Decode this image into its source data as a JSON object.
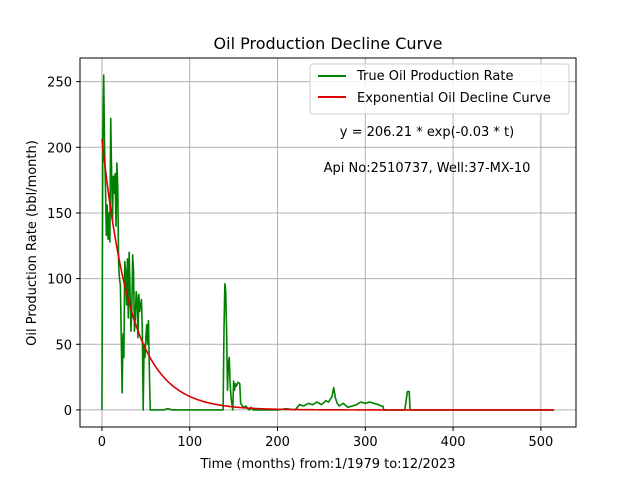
{
  "chart_data": {
    "type": "line",
    "title": "Oil Production Decline Curve",
    "xlabel": "Time (months) from:1/1979 to:12/2023",
    "ylabel": "Oil Production Rate (bbl/month)",
    "xlim": [
      -25,
      540
    ],
    "ylim": [
      -13,
      268
    ],
    "xticks": [
      0,
      100,
      200,
      300,
      400,
      500
    ],
    "yticks": [
      0,
      50,
      100,
      150,
      200,
      250
    ],
    "grid": true,
    "legend_position": "top-right",
    "annotations": [
      "y = 206.21 * exp(-0.03 * t)",
      "Api No:2510737, Well:37-MX-10"
    ],
    "series": [
      {
        "name": "True Oil Production Rate",
        "color": "#008000",
        "kind": "data",
        "points": [
          [
            0,
            0
          ],
          [
            1,
            210
          ],
          [
            2,
            255
          ],
          [
            3,
            200
          ],
          [
            4,
            170
          ],
          [
            5,
            133
          ],
          [
            6,
            156
          ],
          [
            7,
            130
          ],
          [
            8,
            150
          ],
          [
            9,
            128
          ],
          [
            10,
            222
          ],
          [
            11,
            180
          ],
          [
            12,
            145
          ],
          [
            13,
            178
          ],
          [
            14,
            165
          ],
          [
            15,
            180
          ],
          [
            16,
            140
          ],
          [
            17,
            188
          ],
          [
            18,
            170
          ],
          [
            19,
            110
          ],
          [
            20,
            100
          ],
          [
            21,
            95
          ],
          [
            22,
            55
          ],
          [
            23,
            13
          ],
          [
            24,
            58
          ],
          [
            25,
            40
          ],
          [
            26,
            113
          ],
          [
            27,
            105
          ],
          [
            28,
            80
          ],
          [
            29,
            115
          ],
          [
            30,
            70
          ],
          [
            31,
            120
          ],
          [
            32,
            90
          ],
          [
            33,
            60
          ],
          [
            34,
            75
          ],
          [
            35,
            118
          ],
          [
            36,
            105
          ],
          [
            37,
            60
          ],
          [
            38,
            70
          ],
          [
            39,
            90
          ],
          [
            40,
            85
          ],
          [
            41,
            55
          ],
          [
            42,
            88
          ],
          [
            43,
            75
          ],
          [
            44,
            80
          ],
          [
            45,
            84
          ],
          [
            46,
            60
          ],
          [
            47,
            0
          ],
          [
            48,
            50
          ],
          [
            49,
            40
          ],
          [
            50,
            55
          ],
          [
            51,
            65
          ],
          [
            52,
            50
          ],
          [
            53,
            68
          ],
          [
            54,
            30
          ],
          [
            55,
            0
          ],
          [
            60,
            0
          ],
          [
            70,
            0
          ],
          [
            75,
            1
          ],
          [
            80,
            0
          ],
          [
            100,
            0
          ],
          [
            120,
            0
          ],
          [
            138,
            0
          ],
          [
            139,
            60
          ],
          [
            140,
            96
          ],
          [
            141,
            90
          ],
          [
            142,
            60
          ],
          [
            143,
            15
          ],
          [
            144,
            35
          ],
          [
            145,
            40
          ],
          [
            146,
            20
          ],
          [
            147,
            10
          ],
          [
            148,
            5
          ],
          [
            149,
            0
          ],
          [
            150,
            22
          ],
          [
            151,
            15
          ],
          [
            152,
            20
          ],
          [
            153,
            18
          ],
          [
            155,
            21
          ],
          [
            157,
            20
          ],
          [
            158,
            5
          ],
          [
            160,
            3
          ],
          [
            162,
            2
          ],
          [
            164,
            3
          ],
          [
            166,
            1
          ],
          [
            168,
            0
          ],
          [
            170,
            2
          ],
          [
            172,
            0
          ],
          [
            176,
            0
          ],
          [
            180,
            0
          ],
          [
            190,
            0
          ],
          [
            200,
            0
          ],
          [
            210,
            1
          ],
          [
            220,
            0
          ],
          [
            225,
            4
          ],
          [
            230,
            3
          ],
          [
            235,
            5
          ],
          [
            240,
            4
          ],
          [
            245,
            6
          ],
          [
            250,
            4
          ],
          [
            255,
            7
          ],
          [
            258,
            6
          ],
          [
            262,
            10
          ],
          [
            264,
            17
          ],
          [
            266,
            9
          ],
          [
            268,
            5
          ],
          [
            270,
            3
          ],
          [
            275,
            5
          ],
          [
            280,
            2
          ],
          [
            285,
            3
          ],
          [
            290,
            4
          ],
          [
            292,
            5
          ],
          [
            295,
            6
          ],
          [
            300,
            5
          ],
          [
            305,
            6
          ],
          [
            310,
            5
          ],
          [
            315,
            4
          ],
          [
            318,
            3
          ],
          [
            320,
            3
          ],
          [
            321,
            0
          ],
          [
            330,
            0
          ],
          [
            345,
            0
          ],
          [
            348,
            14
          ],
          [
            350,
            14
          ],
          [
            351,
            0
          ],
          [
            360,
            0
          ],
          [
            400,
            0
          ],
          [
            450,
            0
          ],
          [
            500,
            0
          ],
          [
            515,
            0
          ]
        ]
      },
      {
        "name": "Exponential Oil Decline Curve",
        "color": "#dd0000",
        "kind": "fit",
        "a": 206.21,
        "b": 0.03,
        "t_range": [
          0,
          515
        ]
      }
    ]
  }
}
